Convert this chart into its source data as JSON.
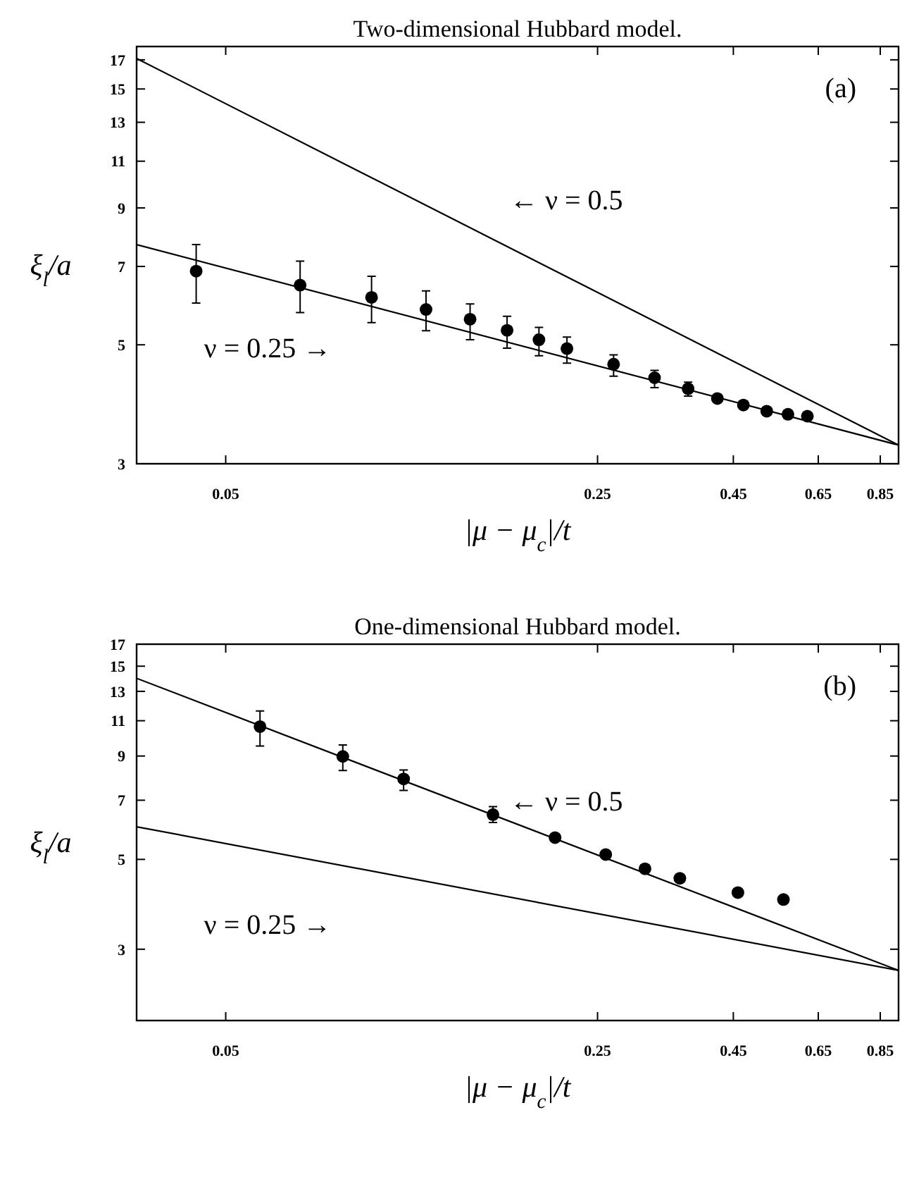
{
  "chart_data": [
    {
      "type": "scatter",
      "title": "Two-dimensional Hubbard model.",
      "xlabel": "|μ − μ$_{c}$|/t",
      "ylabel": "ξ$_{l}$/a",
      "log": "xy",
      "xlim": [
        0.034,
        0.92
      ],
      "ylim": [
        3,
        18
      ],
      "xticks": [
        0.05,
        0.25,
        0.45,
        0.65,
        0.85
      ],
      "yticks": [
        3,
        5,
        7,
        9,
        11,
        13,
        15,
        17
      ],
      "grid": false,
      "series": [
        {
          "marker": "circle",
          "color": "#000000",
          "x": [
            0.044,
            0.069,
            0.094,
            0.119,
            0.144,
            0.169,
            0.194,
            0.219,
            0.268,
            0.32,
            0.37,
            0.42,
            0.47,
            0.52,
            0.57,
            0.62
          ],
          "values": [
            6.86,
            6.46,
            6.13,
            5.82,
            5.58,
            5.32,
            5.11,
            4.92,
            4.6,
            4.34,
            4.14,
            3.97,
            3.86,
            3.76,
            3.71,
            3.68
          ],
          "errors": [
            [
              5.98,
              7.69
            ],
            [
              5.74,
              7.16
            ],
            [
              5.5,
              6.71
            ],
            [
              5.31,
              6.3
            ],
            [
              5.11,
              5.96
            ],
            [
              4.93,
              5.65
            ],
            [
              4.77,
              5.39
            ],
            [
              4.62,
              5.17
            ],
            [
              4.37,
              4.79
            ],
            [
              4.16,
              4.48
            ],
            [
              4.01,
              4.26
            ],
            null,
            null,
            null,
            null,
            null
          ]
        },
        {
          "type": "line",
          "color": "#000000",
          "x": [
            0.034,
            0.92
          ],
          "values": [
            17.1,
            3.25
          ]
        },
        {
          "type": "line",
          "color": "#000000",
          "x": [
            0.034,
            0.92
          ],
          "values": [
            7.69,
            3.25
          ]
        }
      ],
      "annotations": [
        "←   ν = 0.5",
        "ν = 0.25   →",
        "(a)"
      ]
    },
    {
      "type": "scatter",
      "title": "One-dimensional Hubbard model.",
      "xlabel": "|μ − μ$_{c}$|/t",
      "ylabel": "ξ$_{l}$/a",
      "log": "xy",
      "xlim": [
        0.034,
        0.92
      ],
      "ylim": [
        2,
        17
      ],
      "xticks": [
        0.05,
        0.25,
        0.45,
        0.65,
        0.85
      ],
      "yticks": [
        3,
        5,
        7,
        9,
        11,
        13,
        15,
        17
      ],
      "grid": false,
      "series": [
        {
          "marker": "circle",
          "color": "#000000",
          "x": [
            0.058,
            0.083,
            0.108,
            0.159,
            0.208,
            0.259,
            0.307,
            0.357,
            0.459,
            0.559
          ],
          "values": [
            10.64,
            8.98,
            7.9,
            6.45,
            5.66,
            5.14,
            4.74,
            4.49,
            4.14,
            3.98
          ],
          "errors": [
            [
              9.53,
              11.63
            ],
            [
              8.29,
              9.58
            ],
            [
              7.4,
              8.31
            ],
            [
              6.17,
              6.75
            ],
            null,
            null,
            null,
            null,
            null,
            null
          ]
        },
        {
          "type": "line",
          "color": "#000000",
          "x": [
            0.034,
            0.92
          ],
          "values": [
            14.0,
            2.66
          ]
        },
        {
          "type": "line",
          "color": "#000000",
          "x": [
            0.034,
            0.92
          ],
          "values": [
            6.02,
            2.66
          ]
        }
      ],
      "annotations": [
        "←   ν = 0.5",
        "ν = 0.25   →",
        "(b)"
      ]
    }
  ]
}
